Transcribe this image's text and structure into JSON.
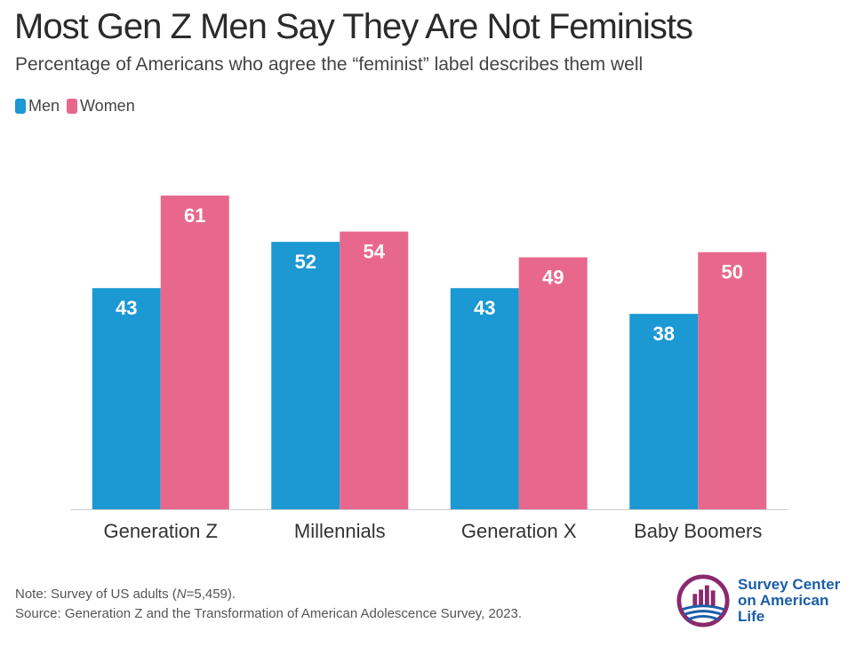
{
  "title": "Most Gen Z Men Say They Are Not Feminists",
  "subtitle": "Percentage of Americans who agree the “feminist” label describes them well",
  "legend": [
    {
      "label": "Men",
      "color": "#1c98d2"
    },
    {
      "label": "Women",
      "color": "#e8688d"
    }
  ],
  "chart_data": {
    "type": "bar",
    "categories": [
      "Generation Z",
      "Millennials",
      "Generation X",
      "Baby Boomers"
    ],
    "series": [
      {
        "name": "Men",
        "values": [
          43,
          52,
          43,
          38
        ],
        "color": "#1c98d2"
      },
      {
        "name": "Women",
        "values": [
          61,
          54,
          49,
          50
        ],
        "color": "#e8688d"
      }
    ],
    "ylim": [
      0,
      70
    ],
    "grid": false,
    "data_labels": true,
    "legend_position": "top-left"
  },
  "note": {
    "line1_prefix": "Note: Survey of US adults (",
    "n_symbol": "N",
    "line1_suffix": "=5,459).",
    "line2": "Source: Generation Z and the Transformation of American Adolescence Survey, 2023."
  },
  "logo": {
    "line1": "Survey Center",
    "line2": "on American Life",
    "colors": {
      "ring": "#8a2a6e",
      "bars": "#8a2a6e",
      "waves": "#1a5ea8"
    }
  }
}
